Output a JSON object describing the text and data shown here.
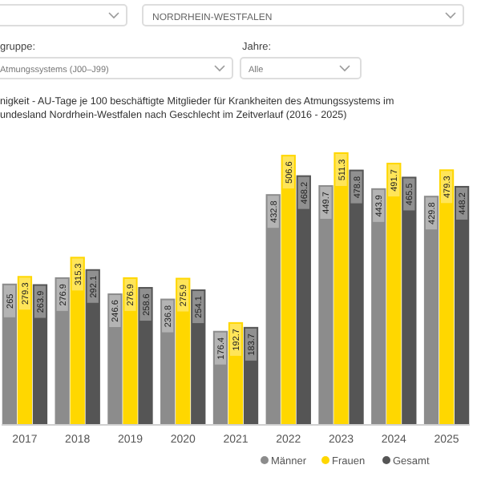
{
  "chart_data": {
    "type": "bar",
    "title": "nigkeit - AU-Tage je 100 beschäftigte Mitglieder für Krankheiten des Atmungssystems im\nundesland Nordrhein-Westfalen nach Geschlecht im Zeitverlauf (2016 - 2025)",
    "annotations": [
      "NORDRHEIN-WESTFALEN",
      "gruppe:",
      "Atmungssystems (J00–J99)",
      "Jahre:",
      "Alle"
    ],
    "categories": [
      "2017",
      "2018",
      "2019",
      "2020",
      "2021",
      "2022",
      "2023",
      "2024",
      "2025"
    ],
    "series": [
      {
        "name": "Männer",
        "color": "#8c8c8c",
        "values": [
          265,
          276.9,
          246.6,
          236.8,
          176.4,
          432.8,
          449.7,
          443.9,
          429.8
        ]
      },
      {
        "name": "Frauen",
        "color": "#ffd700",
        "values": [
          279.3,
          315.3,
          276.9,
          275.9,
          192.7,
          506.6,
          511.3,
          491.7,
          479.3
        ]
      },
      {
        "name": "Gesamt",
        "color": "#555555",
        "values": [
          263.9,
          292.1,
          258.6,
          254.1,
          183.7,
          468.2,
          478.8,
          465.5,
          448.2
        ]
      }
    ],
    "data_labels": true,
    "legend": "bottom"
  }
}
